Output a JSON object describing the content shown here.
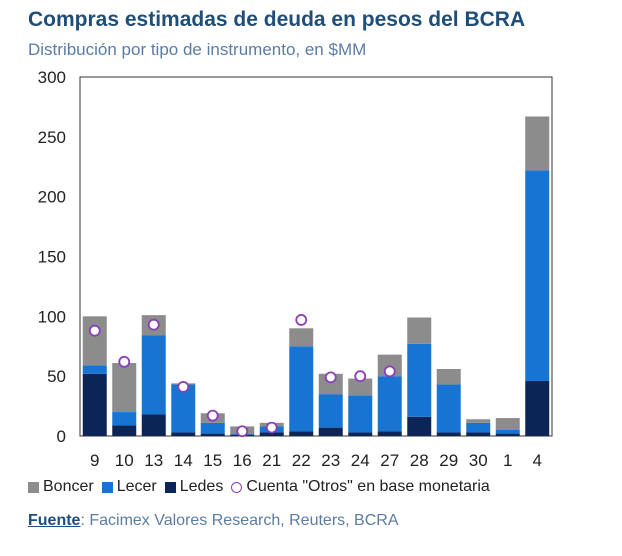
{
  "title": "Compras estimadas de deuda en pesos del BCRA",
  "subtitle": "Distribución por tipo de instrumento, en $MM",
  "colors": {
    "boncer": "#8c8c8c",
    "lecer": "#1874d2",
    "ledes": "#0b2556",
    "cuenta": "#8a3fb5",
    "title": "#1f4e79"
  },
  "legend": {
    "boncer": "Boncer",
    "lecer": "Lecer",
    "ledes": "Ledes",
    "cuenta": "Cuenta \"Otros\" en base monetaria"
  },
  "source": {
    "label": "Fuente",
    "text": ": Facimex Valores Research, Reuters, BCRA"
  },
  "chart_data": {
    "type": "bar",
    "stacked": true,
    "categories": [
      "9",
      "10",
      "13",
      "14",
      "15",
      "16",
      "21",
      "22",
      "23",
      "24",
      "27",
      "28",
      "29",
      "30",
      "1",
      "4"
    ],
    "ylim": [
      0,
      300
    ],
    "yticks": [
      0,
      50,
      100,
      150,
      200,
      250,
      300
    ],
    "grid": false,
    "legend_position": "bottom",
    "series": [
      {
        "name": "Ledes",
        "values": [
          52,
          9,
          18,
          3,
          2,
          1,
          3,
          4,
          7,
          3,
          4,
          16,
          3,
          3,
          2,
          46
        ]
      },
      {
        "name": "Lecer",
        "values": [
          7,
          11,
          66,
          40,
          9,
          1,
          5,
          71,
          28,
          31,
          46,
          61,
          40,
          8,
          3,
          176
        ]
      },
      {
        "name": "Boncer",
        "values": [
          41,
          41,
          17,
          1,
          8,
          6,
          3,
          15,
          17,
          14,
          18,
          22,
          13,
          3,
          10,
          45
        ]
      }
    ],
    "markers": {
      "name": "Cuenta \"Otros\" en base monetaria",
      "values": [
        88,
        62,
        93,
        41,
        17,
        4,
        7,
        97,
        49,
        50,
        54,
        null,
        null,
        null,
        null,
        null
      ]
    }
  }
}
